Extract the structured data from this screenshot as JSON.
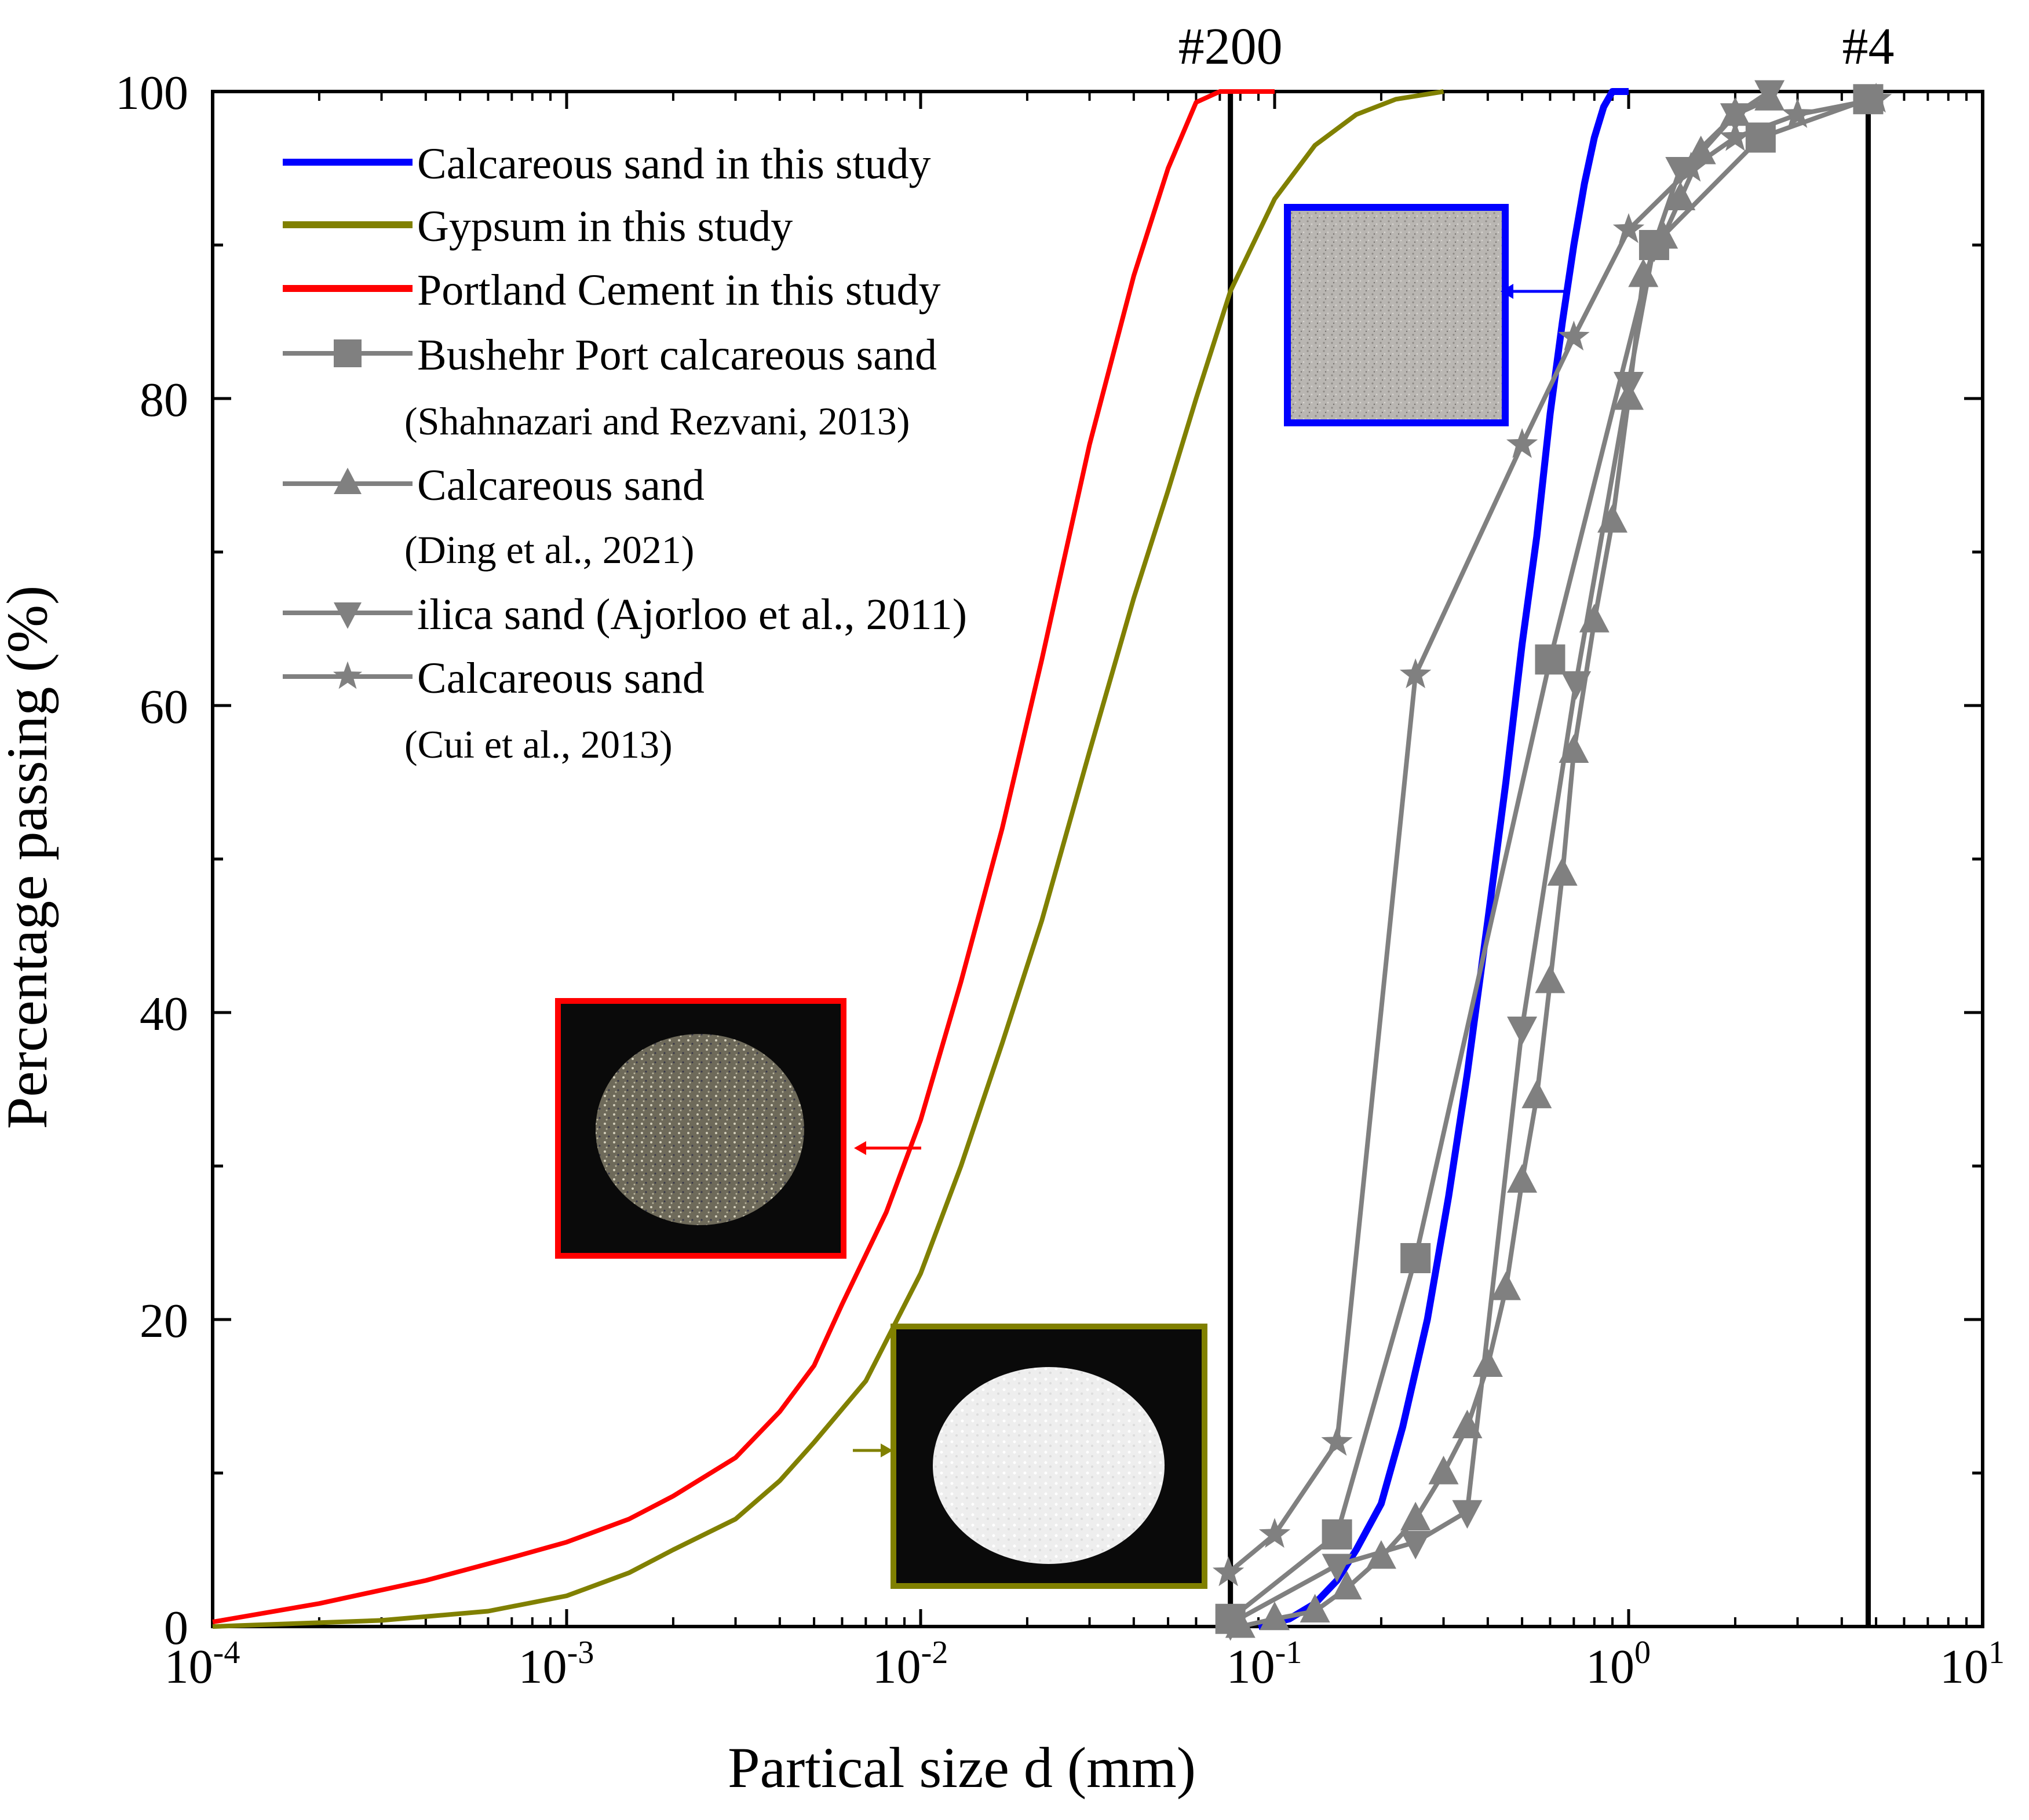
{
  "chart_data": {
    "type": "line",
    "xscale": "log",
    "xlim": [
      0.0001,
      10
    ],
    "ylim": [
      0,
      100
    ],
    "xlabel": "Partical size d (mm)",
    "ylabel": "Percentage passing (%)",
    "x_ticks": [
      {
        "value": 0.0001,
        "base": "10",
        "exp": "-4"
      },
      {
        "value": 0.001,
        "base": "10",
        "exp": "-3"
      },
      {
        "value": 0.01,
        "base": "10",
        "exp": "-2"
      },
      {
        "value": 0.1,
        "base": "10",
        "exp": "-1"
      },
      {
        "value": 1,
        "base": "10",
        "exp": "0"
      },
      {
        "value": 10,
        "base": "10",
        "exp": "1"
      }
    ],
    "y_ticks": [
      {
        "value": 0,
        "label": "0"
      },
      {
        "value": 20,
        "label": "20"
      },
      {
        "value": 40,
        "label": "40"
      },
      {
        "value": 60,
        "label": "60"
      },
      {
        "value": 80,
        "label": "80"
      },
      {
        "value": 100,
        "label": "100"
      }
    ],
    "sieve_lines": [
      {
        "label": "#200",
        "x": 0.075
      },
      {
        "label": "#4",
        "x": 4.75
      }
    ],
    "series": [
      {
        "name": "Calcareous sand in this study",
        "color": "#0000ff",
        "marker": "none",
        "x": [
          0.09,
          0.11,
          0.13,
          0.15,
          0.17,
          0.2,
          0.23,
          0.27,
          0.31,
          0.35,
          0.4,
          0.45,
          0.5,
          0.55,
          0.6,
          0.65,
          0.7,
          0.75,
          0.8,
          0.85,
          0.9,
          1.0
        ],
        "y": [
          0,
          0.5,
          1.5,
          3,
          5,
          8,
          13,
          20,
          28,
          36,
          46,
          55,
          64,
          71,
          79,
          85,
          90,
          94,
          97,
          99,
          100,
          100
        ]
      },
      {
        "name": "Gypsum in this study",
        "color": "#808000",
        "marker": "none",
        "x": [
          0.0001,
          0.0003,
          0.0006,
          0.001,
          0.0015,
          0.002,
          0.003,
          0.004,
          0.005,
          0.007,
          0.01,
          0.013,
          0.017,
          0.022,
          0.03,
          0.04,
          0.05,
          0.06,
          0.075,
          0.1,
          0.13,
          0.17,
          0.22,
          0.3
        ],
        "y": [
          0,
          0.4,
          1,
          2,
          3.5,
          5,
          7,
          9.5,
          12,
          16,
          23,
          30,
          38,
          46,
          57,
          67,
          74,
          80,
          87,
          93,
          96.5,
          98.5,
          99.5,
          100
        ]
      },
      {
        "name": "Portland Cement in this study",
        "color": "#ff0000",
        "marker": "none",
        "x": [
          0.0001,
          0.0002,
          0.0004,
          0.0007,
          0.001,
          0.0015,
          0.002,
          0.003,
          0.004,
          0.005,
          0.006,
          0.008,
          0.01,
          0.013,
          0.017,
          0.022,
          0.03,
          0.04,
          0.05,
          0.06,
          0.07,
          0.1
        ],
        "y": [
          0.3,
          1.5,
          3,
          4.5,
          5.5,
          7,
          8.5,
          11,
          14,
          17,
          21,
          27,
          33,
          42,
          52,
          63,
          77,
          88,
          95,
          99.3,
          100,
          100
        ]
      },
      {
        "name": "Bushehr Port calcareous sand",
        "citation": "(Shahnazari and Rezvani, 2013)",
        "color": "#808080",
        "marker": "square",
        "x": [
          0.075,
          0.15,
          0.25,
          0.6,
          1.18,
          2.36,
          4.75
        ],
        "y": [
          0.5,
          6,
          24,
          63,
          90,
          97,
          99.5
        ]
      },
      {
        "name": "Calcareous sand",
        "citation": "(Ding et al., 2021)",
        "color": "#808080",
        "marker": "triangle-up",
        "x": [
          0.08,
          0.1,
          0.13,
          0.16,
          0.2,
          0.25,
          0.3,
          0.35,
          0.4,
          0.45,
          0.5,
          0.55,
          0.6,
          0.65,
          0.7,
          0.8,
          0.9,
          1.0,
          1.1,
          1.25,
          1.4,
          1.6,
          2.0,
          2.5
        ],
        "y": [
          0,
          0.5,
          1,
          2.5,
          4.5,
          7,
          10,
          13,
          17,
          22,
          29,
          34.5,
          42,
          49,
          57,
          65.5,
          72,
          80,
          88,
          90.5,
          93,
          96,
          98.5,
          99.5
        ]
      },
      {
        "name": "ilica sand (Ajorloo et al., 2011)",
        "color": "#808080",
        "marker": "triangle-down",
        "x": [
          0.075,
          0.15,
          0.25,
          0.35,
          0.5,
          0.71,
          1.0,
          1.18,
          1.4,
          2.0,
          2.5
        ],
        "y": [
          0.2,
          4,
          5.5,
          7.5,
          39,
          61.5,
          81,
          90,
          95,
          98.5,
          100
        ]
      },
      {
        "name": "Calcareous sand",
        "citation": "(Cui et al., 2013)",
        "color": "#808080",
        "marker": "star",
        "x": [
          0.074,
          0.1,
          0.15,
          0.25,
          0.5,
          0.7,
          1.0,
          1.5,
          2.0,
          3.0,
          5.0
        ],
        "y": [
          3.5,
          6,
          12,
          62,
          77,
          84,
          91,
          95,
          97,
          98.5,
          99.5
        ]
      }
    ]
  }
}
